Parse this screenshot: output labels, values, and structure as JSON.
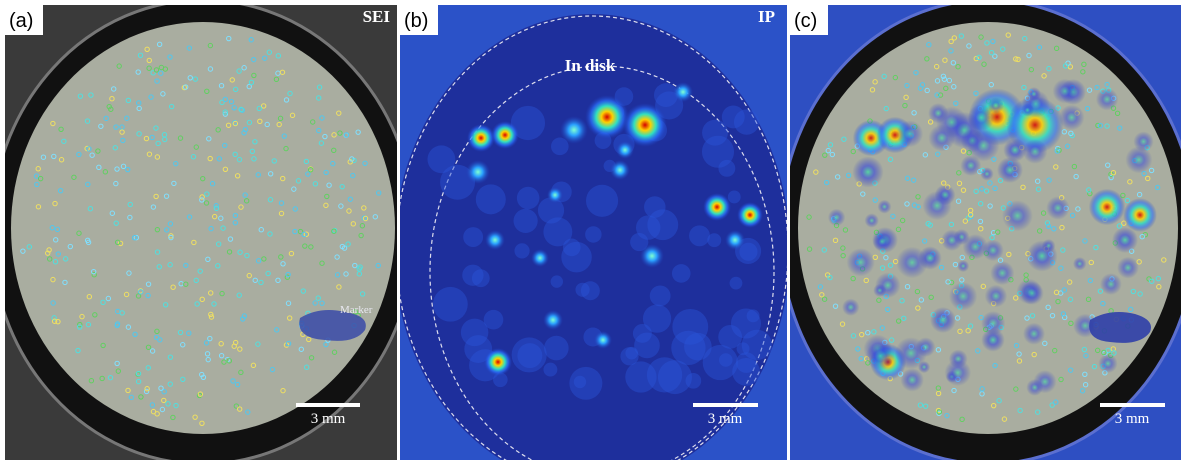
{
  "panels": [
    {
      "label": "(a)",
      "tag": "SEI",
      "annotation": "Marker",
      "scale_bar": "3 mm"
    },
    {
      "label": "(b)",
      "tag": "IP",
      "annotation": "In disk",
      "scale_bar": "3 mm"
    },
    {
      "label": "(c)",
      "scale_bar": "3 mm"
    }
  ]
}
